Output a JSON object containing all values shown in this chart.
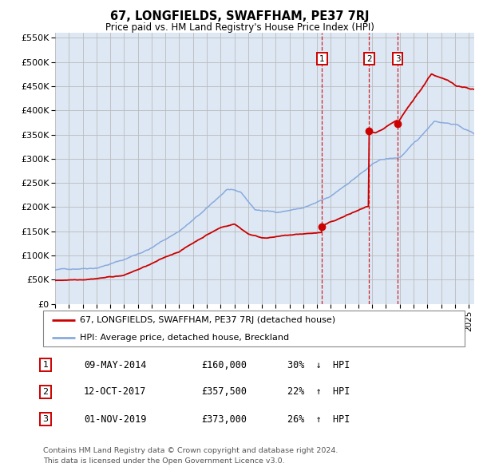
{
  "title": "67, LONGFIELDS, SWAFFHAM, PE37 7RJ",
  "subtitle": "Price paid vs. HM Land Registry's House Price Index (HPI)",
  "ylim": [
    0,
    560000
  ],
  "yticks": [
    0,
    50000,
    100000,
    150000,
    200000,
    250000,
    300000,
    350000,
    400000,
    450000,
    500000,
    550000
  ],
  "ytick_labels": [
    "£0",
    "£50K",
    "£100K",
    "£150K",
    "£200K",
    "£250K",
    "£300K",
    "£350K",
    "£400K",
    "£450K",
    "£500K",
    "£550K"
  ],
  "xlim_start": 1995.0,
  "xlim_end": 2025.4,
  "sales": [
    {
      "label": "1",
      "date": "09-MAY-2014",
      "price": 160000,
      "pct": "30%",
      "dir": "↓",
      "year": 2014.36
    },
    {
      "label": "2",
      "date": "12-OCT-2017",
      "price": 357500,
      "pct": "22%",
      "dir": "↑",
      "year": 2017.78
    },
    {
      "label": "3",
      "date": "01-NOV-2019",
      "price": 373000,
      "pct": "26%",
      "dir": "↑",
      "year": 2019.84
    }
  ],
  "line_color_red": "#cc0000",
  "line_color_blue": "#88aadd",
  "marker_box_color": "#cc0000",
  "grid_color": "#bbbbbb",
  "bg_color": "#dde8f4",
  "legend_label_red": "67, LONGFIELDS, SWAFFHAM, PE37 7RJ (detached house)",
  "legend_label_blue": "HPI: Average price, detached house, Breckland",
  "footer1": "Contains HM Land Registry data © Crown copyright and database right 2024.",
  "footer2": "This data is licensed under the Open Government Licence v3.0."
}
